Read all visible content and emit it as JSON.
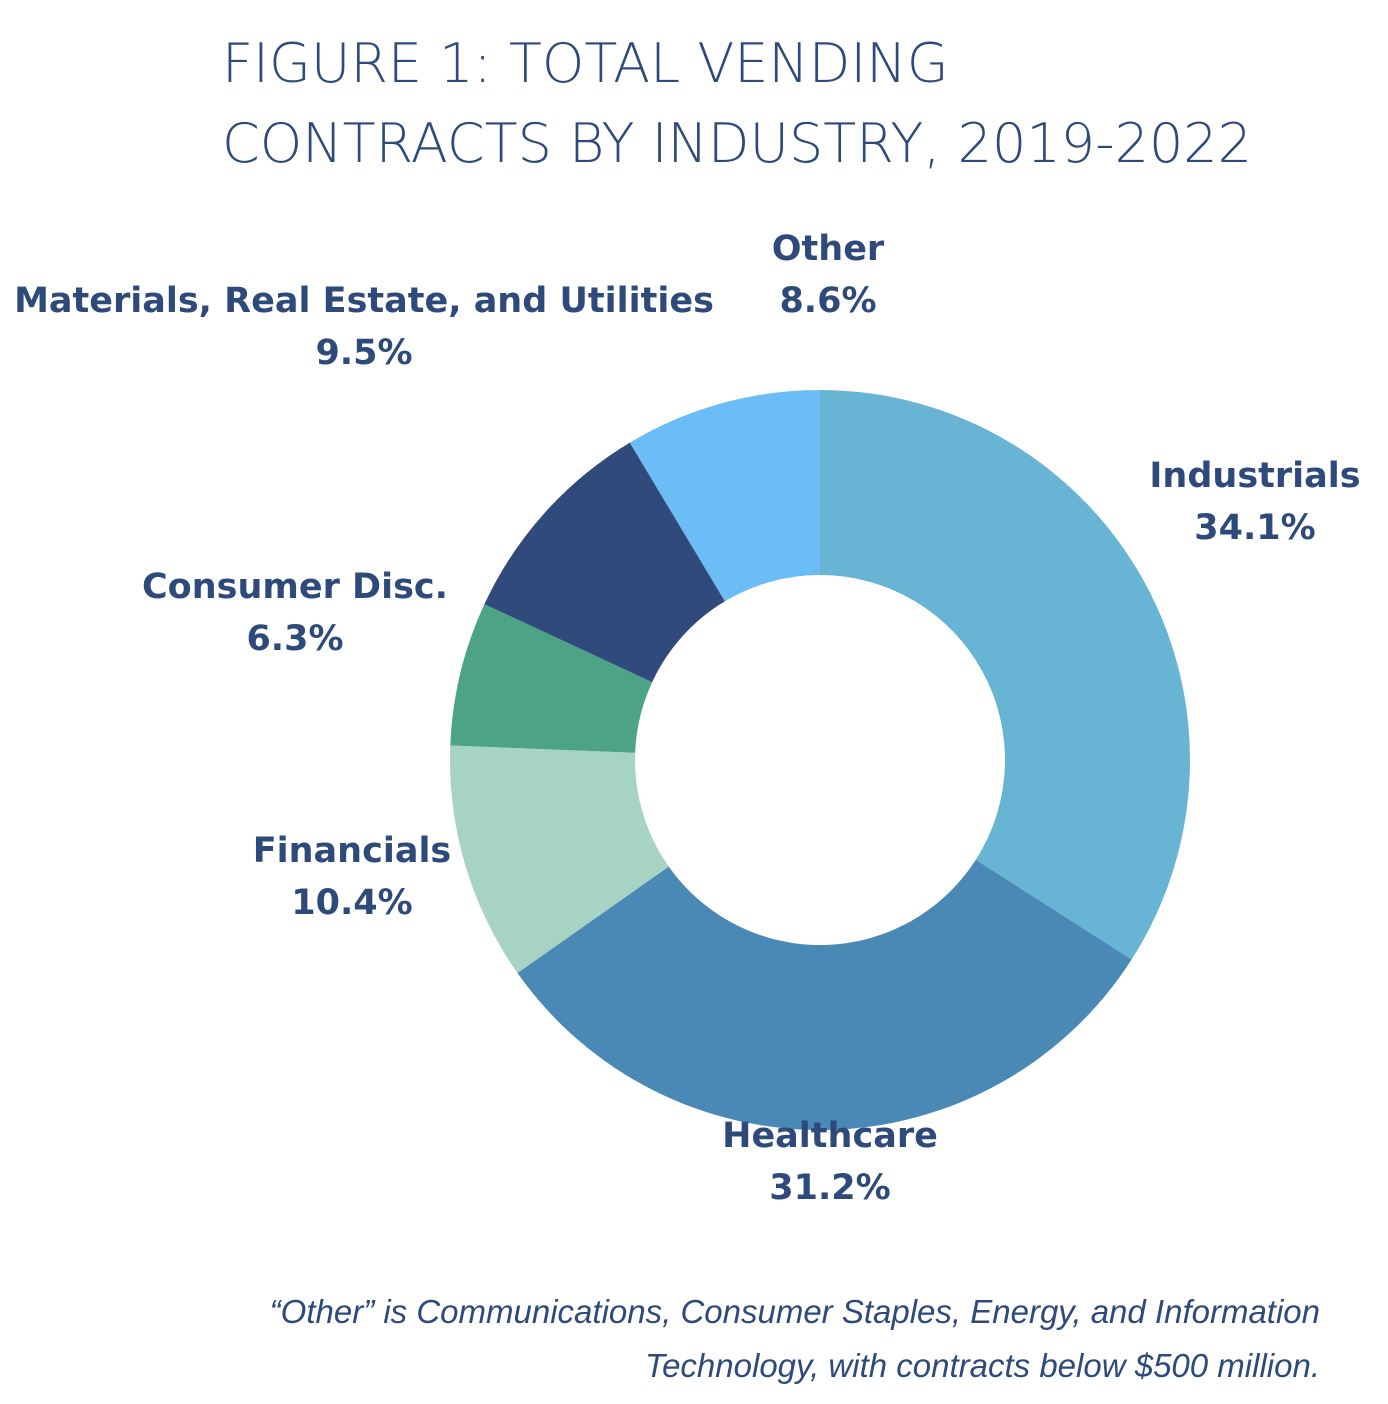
{
  "chart_data": {
    "type": "pie",
    "donut": true,
    "title": [
      "FIGURE 1: TOTAL VENDING",
      "CONTRACTS BY INDUSTRY, 2019-2022"
    ],
    "categories": [
      "Industrials",
      "Healthcare",
      "Financials",
      "Consumer Disc.",
      "Materials, Real Estate, and Utilities",
      "Other"
    ],
    "values": [
      34.1,
      31.2,
      10.4,
      6.3,
      9.5,
      8.6
    ],
    "value_labels": [
      "34.1%",
      "31.2%",
      "10.4%",
      "6.3%",
      "9.5%",
      "8.6%"
    ],
    "colors": [
      "#67b4d4",
      "#4a89b5",
      "#a6d3c4",
      "#4ca385",
      "#2f4a7b",
      "#6cbdf5"
    ],
    "note": [
      "“Other” is Communications, Consumer Staples, Energy, and Information",
      "Technology, with contracts below $500 million."
    ]
  }
}
